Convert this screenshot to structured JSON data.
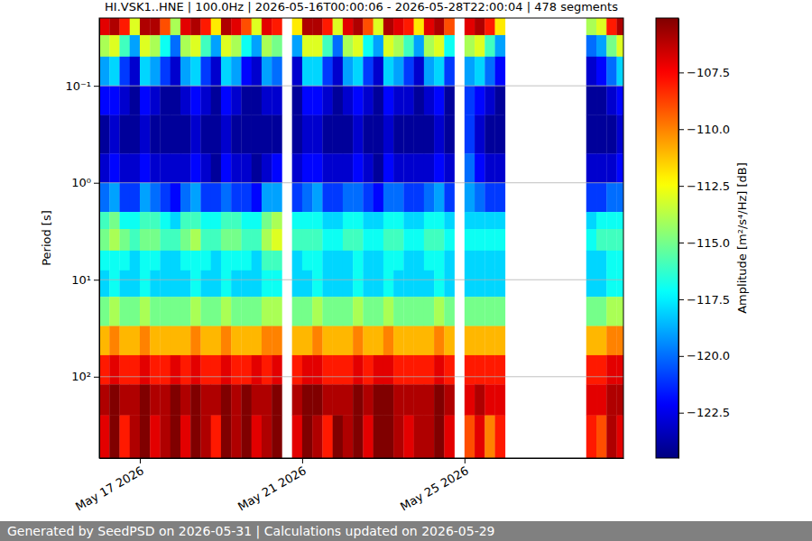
{
  "chart_data": {
    "type": "heatmap",
    "title": "HI.VSK1..HNE | 100.0Hz | 2026-05-16T00:00:06 - 2026-05-28T22:00:04 | 478 segments",
    "ylabel": "Period [s]",
    "zlabel": "Amplitude [m²/s⁴/Hz] [dB]",
    "footer": "Generated by SeedPSD on 2026-05-31 | Calculations updated on 2026-05-29",
    "log": "y",
    "grid": true,
    "color": "jet",
    "xlim": [
      "2026-05-16T00:00:06",
      "2026-05-28T22:00:04"
    ],
    "xticks": [
      {
        "value": "2026-05-17",
        "label": "May 17 2026"
      },
      {
        "value": "2026-05-21",
        "label": "May 21 2026"
      },
      {
        "value": "2026-05-25",
        "label": "May 25 2026"
      }
    ],
    "ylim": [
      0.02,
      690
    ],
    "yticks": [
      {
        "value": 0.1,
        "label": "10⁻¹"
      },
      {
        "value": 1,
        "label": "10⁰"
      },
      {
        "value": 10,
        "label": "10¹"
      },
      {
        "value": 100,
        "label": "10²"
      }
    ],
    "zlim": [
      -124.5,
      -105.1
    ],
    "zticks": [
      {
        "value": -107.5,
        "label": "−107.5"
      },
      {
        "value": -110,
        "label": "−110.0"
      },
      {
        "value": -112.5,
        "label": "−112.5"
      },
      {
        "value": -115,
        "label": "−115.0"
      },
      {
        "value": -117.5,
        "label": "−117.5"
      },
      {
        "value": -120,
        "label": "−120.0"
      },
      {
        "value": -122.5,
        "label": "−122.5"
      }
    ],
    "x_edges": [
      "2026-05-16T00:00",
      "2026-05-16T06:00",
      "2026-05-16T12:00",
      "2026-05-16T18:00",
      "2026-05-17T00:00",
      "2026-05-17T06:00",
      "2026-05-17T12:00",
      "2026-05-17T18:00",
      "2026-05-18T00:00",
      "2026-05-18T06:00",
      "2026-05-18T12:00",
      "2026-05-18T18:00",
      "2026-05-19T00:00",
      "2026-05-19T06:00",
      "2026-05-19T12:00",
      "2026-05-19T18:00",
      "2026-05-20T00:00",
      "2026-05-20T06:00",
      "2026-05-20T12:00",
      "2026-05-20T18:00",
      "2026-05-21T00:00",
      "2026-05-21T06:00",
      "2026-05-21T12:00",
      "2026-05-21T18:00",
      "2026-05-22T00:00",
      "2026-05-22T06:00",
      "2026-05-22T12:00",
      "2026-05-22T18:00",
      "2026-05-23T00:00",
      "2026-05-23T06:00",
      "2026-05-23T12:00",
      "2026-05-23T18:00",
      "2026-05-24T00:00",
      "2026-05-24T06:00",
      "2026-05-24T12:00",
      "2026-05-24T18:00",
      "2026-05-25T00:00",
      "2026-05-25T06:00",
      "2026-05-25T12:00",
      "2026-05-25T18:00",
      "2026-05-26T00:00",
      "2026-05-26T06:00",
      "2026-05-26T12:00",
      "2026-05-26T18:00",
      "2026-05-27T00:00",
      "2026-05-27T06:00",
      "2026-05-27T12:00",
      "2026-05-27T18:00",
      "2026-05-28T00:00",
      "2026-05-28T06:00",
      "2026-05-28T12:00",
      "2026-05-28T18:00",
      "2026-05-28T22:00"
    ],
    "y_edges": [
      0.02,
      0.03,
      0.05,
      0.1,
      0.2,
      0.5,
      1,
      2,
      3,
      5,
      8,
      15,
      30,
      60,
      120,
      250,
      690
    ],
    "z": [
      [
        -107,
        -106,
        -108,
        -113,
        -106,
        -106,
        -109,
        -114,
        -107,
        -106,
        -108,
        -112,
        -106,
        -107,
        -109,
        -113,
        -107,
        -108,
        null,
        -112,
        -106,
        -106,
        -108,
        -113,
        -107,
        -106,
        -109,
        -113,
        -106,
        -107,
        -108,
        -112,
        -107,
        -106,
        -109,
        null,
        -107,
        -106,
        -108,
        -112,
        null,
        null,
        null,
        null,
        null,
        null,
        null,
        null,
        -114,
        -113,
        -108,
        -106
      ],
      [
        -114,
        -113,
        -116,
        -119,
        -113,
        -114,
        -117,
        -120,
        -114,
        -113,
        -116,
        -119,
        -113,
        -114,
        -117,
        -119,
        -114,
        -115,
        null,
        -119,
        -113,
        -113,
        -116,
        -120,
        -114,
        -113,
        -117,
        -119,
        -113,
        -114,
        -116,
        -119,
        -114,
        -113,
        -117,
        null,
        -114,
        -113,
        -116,
        -119,
        null,
        null,
        null,
        null,
        null,
        null,
        null,
        null,
        -120,
        -119,
        -115,
        -113
      ],
      [
        -119,
        -118,
        -121,
        -123,
        -118,
        -119,
        -121,
        -123,
        -119,
        -118,
        -121,
        -123,
        -118,
        -119,
        -122,
        -123,
        -119,
        -120,
        null,
        -123,
        -118,
        -118,
        -121,
        -123,
        -119,
        -118,
        -121,
        -123,
        -118,
        -119,
        -121,
        -123,
        -119,
        -118,
        -121,
        null,
        -119,
        -118,
        -120,
        -122,
        null,
        null,
        null,
        null,
        null,
        null,
        null,
        null,
        -123,
        -122,
        -120,
        -118
      ],
      [
        -122,
        -122,
        -123,
        -124,
        -122,
        -123,
        -124,
        -124,
        -123,
        -122,
        -123,
        -124,
        -122,
        -123,
        -124,
        -124,
        -123,
        -123,
        null,
        -124,
        -122,
        -122,
        -123,
        -124,
        -123,
        -122,
        -123,
        -124,
        -122,
        -123,
        -123,
        -124,
        -123,
        -122,
        -124,
        null,
        -121,
        -122,
        -123,
        -124,
        null,
        null,
        null,
        null,
        null,
        null,
        null,
        null,
        -124,
        -124,
        -123,
        -122
      ],
      [
        -124,
        -123,
        -124,
        -124,
        -123,
        -124,
        -124,
        -124,
        -124,
        -123,
        -124,
        -124,
        -123,
        -124,
        -124,
        -124,
        -124,
        -124,
        null,
        -124,
        -123,
        -123,
        -124,
        -124,
        -124,
        -123,
        -124,
        -124,
        -123,
        -124,
        -124,
        -124,
        -124,
        -123,
        -124,
        null,
        -121,
        -123,
        -124,
        -124,
        null,
        null,
        null,
        null,
        null,
        null,
        null,
        null,
        -124,
        -124,
        -124,
        -123
      ],
      [
        -123,
        -122,
        -123,
        -123,
        -122,
        -123,
        -123,
        -123,
        -123,
        -122,
        -123,
        -124,
        -122,
        -123,
        -123,
        -124,
        -123,
        -122,
        null,
        -123,
        -122,
        -122,
        -123,
        -123,
        -123,
        -122,
        -123,
        -124,
        -122,
        -123,
        -123,
        -123,
        -123,
        -122,
        -123,
        null,
        -120,
        -122,
        -123,
        -123,
        null,
        null,
        null,
        null,
        null,
        null,
        null,
        null,
        -123,
        -123,
        -123,
        -122
      ],
      [
        -120,
        -119,
        -121,
        -121,
        -119,
        -120,
        -121,
        -122,
        -120,
        -119,
        -121,
        -121,
        -120,
        -121,
        -121,
        -122,
        -119,
        -119,
        null,
        -121,
        -120,
        -119,
        -121,
        -121,
        -120,
        -120,
        -121,
        -122,
        -120,
        -120,
        -121,
        -121,
        -120,
        -119,
        -121,
        null,
        -119,
        -120,
        -121,
        -121,
        null,
        null,
        null,
        null,
        null,
        null,
        null,
        null,
        -121,
        -121,
        -120,
        -120
      ],
      [
        -116,
        -115,
        -117,
        -117,
        -116,
        -116,
        -117,
        -118,
        -116,
        -116,
        -117,
        -117,
        -116,
        -116,
        -117,
        -117,
        -115,
        -114,
        null,
        -117,
        -117,
        -117,
        -118,
        -118,
        -117,
        -117,
        -118,
        -118,
        -117,
        -117,
        -118,
        -118,
        -117,
        -117,
        -118,
        null,
        -118,
        -118,
        -118,
        -118,
        null,
        null,
        null,
        null,
        null,
        null,
        null,
        null,
        -118,
        -117,
        -117,
        -117
      ],
      [
        -115,
        -114,
        -115,
        -116,
        -115,
        -115,
        -116,
        -116,
        -115,
        -114,
        -116,
        -116,
        -115,
        -115,
        -116,
        -116,
        -114,
        -113,
        null,
        -116,
        -116,
        -116,
        -117,
        -117,
        -116,
        -116,
        -117,
        -117,
        -116,
        -116,
        -117,
        -117,
        -116,
        -116,
        -117,
        null,
        -117,
        -117,
        -117,
        -117,
        null,
        null,
        null,
        null,
        null,
        null,
        null,
        null,
        -117,
        -116,
        -116,
        -116
      ],
      [
        -117,
        -117,
        -117,
        -118,
        -117,
        -117,
        -118,
        -118,
        -117,
        -117,
        -117,
        -118,
        -117,
        -117,
        -117,
        -118,
        -116,
        -116,
        null,
        -118,
        -117,
        -117,
        -118,
        -118,
        -118,
        -117,
        -118,
        -118,
        -117,
        -117,
        -118,
        -118,
        -117,
        -117,
        -118,
        null,
        -118,
        -118,
        -118,
        -118,
        null,
        null,
        null,
        null,
        null,
        null,
        null,
        null,
        -118,
        -118,
        -117,
        -117
      ],
      [
        -118,
        -117,
        -118,
        -118,
        -117,
        -118,
        -118,
        -118,
        -118,
        -117,
        -118,
        -118,
        -117,
        -118,
        -118,
        -118,
        -117,
        -117,
        null,
        -118,
        -118,
        -117,
        -118,
        -118,
        -118,
        -117,
        -118,
        -118,
        -117,
        -118,
        -118,
        -118,
        -118,
        -117,
        -118,
        null,
        -118,
        -118,
        -118,
        -118,
        null,
        null,
        null,
        null,
        null,
        null,
        null,
        null,
        -118,
        -118,
        -117,
        -117
      ],
      [
        -115,
        -114,
        -115,
        -115,
        -114,
        -115,
        -115,
        -115,
        -115,
        -114,
        -115,
        -115,
        -114,
        -115,
        -115,
        -115,
        -114,
        -114,
        null,
        -115,
        -115,
        -114,
        -115,
        -115,
        -115,
        -114,
        -115,
        -115,
        -114,
        -115,
        -115,
        -115,
        -115,
        -114,
        -115,
        null,
        -115,
        -115,
        -115,
        -115,
        null,
        null,
        null,
        null,
        null,
        null,
        null,
        null,
        -115,
        -115,
        -114,
        -114
      ],
      [
        -111,
        -110,
        -111,
        -111,
        -110,
        -111,
        -111,
        -111,
        -111,
        -110,
        -111,
        -111,
        -110,
        -111,
        -111,
        -111,
        -110,
        -110,
        null,
        -111,
        -111,
        -110,
        -111,
        -111,
        -111,
        -110,
        -111,
        -111,
        -110,
        -111,
        -111,
        -111,
        -111,
        -110,
        -111,
        null,
        -111,
        -111,
        -111,
        -111,
        null,
        null,
        null,
        null,
        null,
        null,
        null,
        null,
        -111,
        -111,
        -110,
        -110
      ],
      [
        -108,
        -107,
        -108,
        -108,
        -107,
        -108,
        -108,
        -107,
        -108,
        -107,
        -108,
        -108,
        -107,
        -108,
        -108,
        -107,
        -108,
        -107,
        null,
        -108,
        -107,
        -107,
        -108,
        -108,
        -108,
        -107,
        -108,
        -107,
        -107,
        -108,
        -108,
        -108,
        -108,
        -107,
        -108,
        null,
        -108,
        -108,
        -108,
        -108,
        null,
        null,
        null,
        null,
        null,
        null,
        null,
        null,
        -108,
        -108,
        -107,
        -107
      ],
      [
        -106,
        -105,
        -106,
        -106,
        -105,
        -106,
        -106,
        -105,
        -106,
        -105,
        -106,
        -106,
        -105,
        -106,
        -105,
        -106,
        -106,
        -105,
        null,
        -106,
        -105,
        -105,
        -106,
        -106,
        -106,
        -105,
        -106,
        -105,
        -105,
        -106,
        -106,
        -106,
        -106,
        -105,
        -106,
        null,
        -107,
        -106,
        -107,
        -107,
        null,
        null,
        null,
        null,
        null,
        null,
        null,
        null,
        -107,
        -107,
        -106,
        -106
      ],
      [
        -107,
        -105,
        -108,
        -106,
        -105,
        -107,
        -106,
        -105,
        -107,
        -105,
        -106,
        -108,
        -105,
        -106,
        -105,
        -107,
        -106,
        -105,
        null,
        -107,
        -105,
        -106,
        -108,
        -105,
        -106,
        -105,
        -107,
        -105,
        -105,
        -106,
        -107,
        -106,
        -106,
        -105,
        -107,
        null,
        -109,
        -107,
        -110,
        -108,
        null,
        null,
        null,
        null,
        null,
        null,
        null,
        null,
        -108,
        -109,
        -106,
        -107
      ]
    ]
  }
}
